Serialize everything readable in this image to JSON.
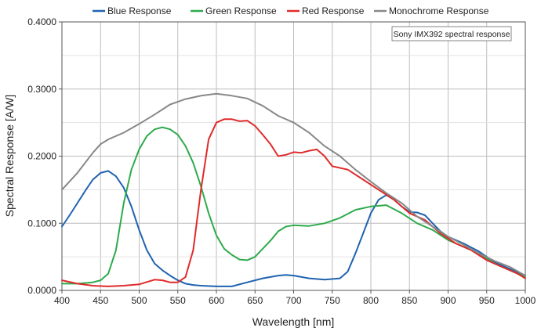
{
  "chart_data": {
    "type": "line",
    "xlabel": "Wavelength [nm]",
    "ylabel": "Spectral Response [A/W]",
    "xlim": [
      400,
      1000
    ],
    "ylim": [
      0,
      0.4
    ],
    "x_ticks": [
      "400",
      "450",
      "500",
      "550",
      "600",
      "650",
      "700",
      "750",
      "800",
      "850",
      "900",
      "950",
      "1000"
    ],
    "y_ticks": [
      "0.0000",
      "0.1000",
      "0.2000",
      "0.3000",
      "0.4000"
    ],
    "grid": true,
    "legend_position": "top",
    "annotation": "Sony IMX392 spectral response",
    "series": [
      {
        "name": "Blue Response",
        "color": "#1f63b0",
        "points": [
          [
            400,
            0.095
          ],
          [
            410,
            0.112
          ],
          [
            420,
            0.13
          ],
          [
            430,
            0.148
          ],
          [
            440,
            0.165
          ],
          [
            450,
            0.175
          ],
          [
            460,
            0.178
          ],
          [
            470,
            0.17
          ],
          [
            480,
            0.153
          ],
          [
            490,
            0.125
          ],
          [
            500,
            0.09
          ],
          [
            510,
            0.06
          ],
          [
            520,
            0.04
          ],
          [
            530,
            0.03
          ],
          [
            540,
            0.022
          ],
          [
            550,
            0.015
          ],
          [
            560,
            0.01
          ],
          [
            570,
            0.008
          ],
          [
            580,
            0.007
          ],
          [
            600,
            0.006
          ],
          [
            620,
            0.006
          ],
          [
            640,
            0.012
          ],
          [
            660,
            0.018
          ],
          [
            680,
            0.022
          ],
          [
            690,
            0.023
          ],
          [
            700,
            0.022
          ],
          [
            720,
            0.018
          ],
          [
            740,
            0.016
          ],
          [
            760,
            0.018
          ],
          [
            770,
            0.028
          ],
          [
            780,
            0.055
          ],
          [
            790,
            0.085
          ],
          [
            800,
            0.115
          ],
          [
            810,
            0.135
          ],
          [
            820,
            0.142
          ],
          [
            830,
            0.135
          ],
          [
            840,
            0.125
          ],
          [
            850,
            0.117
          ],
          [
            860,
            0.116
          ],
          [
            870,
            0.112
          ],
          [
            880,
            0.1
          ],
          [
            890,
            0.088
          ],
          [
            900,
            0.08
          ],
          [
            920,
            0.07
          ],
          [
            940,
            0.058
          ],
          [
            960,
            0.042
          ],
          [
            980,
            0.032
          ],
          [
            1000,
            0.022
          ]
        ]
      },
      {
        "name": "Green Response",
        "color": "#2eaa4c",
        "points": [
          [
            400,
            0.01
          ],
          [
            420,
            0.01
          ],
          [
            440,
            0.012
          ],
          [
            450,
            0.015
          ],
          [
            460,
            0.025
          ],
          [
            470,
            0.06
          ],
          [
            480,
            0.13
          ],
          [
            490,
            0.18
          ],
          [
            500,
            0.21
          ],
          [
            510,
            0.23
          ],
          [
            520,
            0.24
          ],
          [
            530,
            0.243
          ],
          [
            540,
            0.24
          ],
          [
            550,
            0.232
          ],
          [
            560,
            0.215
          ],
          [
            570,
            0.19
          ],
          [
            580,
            0.155
          ],
          [
            590,
            0.115
          ],
          [
            600,
            0.082
          ],
          [
            610,
            0.062
          ],
          [
            620,
            0.053
          ],
          [
            630,
            0.046
          ],
          [
            640,
            0.045
          ],
          [
            650,
            0.05
          ],
          [
            660,
            0.062
          ],
          [
            670,
            0.074
          ],
          [
            680,
            0.088
          ],
          [
            690,
            0.095
          ],
          [
            700,
            0.097
          ],
          [
            720,
            0.096
          ],
          [
            740,
            0.1
          ],
          [
            760,
            0.108
          ],
          [
            780,
            0.12
          ],
          [
            800,
            0.125
          ],
          [
            820,
            0.127
          ],
          [
            840,
            0.115
          ],
          [
            860,
            0.1
          ],
          [
            880,
            0.09
          ],
          [
            900,
            0.075
          ],
          [
            920,
            0.065
          ],
          [
            940,
            0.055
          ],
          [
            960,
            0.04
          ],
          [
            980,
            0.03
          ],
          [
            1000,
            0.02
          ]
        ]
      },
      {
        "name": "Red Response",
        "color": "#e02a2a",
        "points": [
          [
            400,
            0.015
          ],
          [
            420,
            0.01
          ],
          [
            440,
            0.007
          ],
          [
            460,
            0.006
          ],
          [
            480,
            0.007
          ],
          [
            500,
            0.009
          ],
          [
            520,
            0.016
          ],
          [
            530,
            0.015
          ],
          [
            540,
            0.012
          ],
          [
            550,
            0.012
          ],
          [
            560,
            0.02
          ],
          [
            570,
            0.06
          ],
          [
            580,
            0.15
          ],
          [
            590,
            0.225
          ],
          [
            600,
            0.25
          ],
          [
            610,
            0.255
          ],
          [
            620,
            0.255
          ],
          [
            630,
            0.252
          ],
          [
            640,
            0.253
          ],
          [
            650,
            0.245
          ],
          [
            660,
            0.232
          ],
          [
            670,
            0.218
          ],
          [
            680,
            0.2
          ],
          [
            690,
            0.202
          ],
          [
            700,
            0.206
          ],
          [
            710,
            0.205
          ],
          [
            720,
            0.208
          ],
          [
            730,
            0.21
          ],
          [
            740,
            0.2
          ],
          [
            750,
            0.185
          ],
          [
            770,
            0.18
          ],
          [
            790,
            0.165
          ],
          [
            810,
            0.15
          ],
          [
            830,
            0.135
          ],
          [
            850,
            0.115
          ],
          [
            870,
            0.105
          ],
          [
            890,
            0.085
          ],
          [
            910,
            0.07
          ],
          [
            930,
            0.06
          ],
          [
            950,
            0.045
          ],
          [
            970,
            0.035
          ],
          [
            990,
            0.025
          ],
          [
            1000,
            0.018
          ]
        ]
      },
      {
        "name": "Monochrome Response",
        "color": "#888888",
        "points": [
          [
            400,
            0.15
          ],
          [
            420,
            0.175
          ],
          [
            440,
            0.205
          ],
          [
            450,
            0.218
          ],
          [
            460,
            0.225
          ],
          [
            480,
            0.235
          ],
          [
            500,
            0.248
          ],
          [
            520,
            0.262
          ],
          [
            540,
            0.277
          ],
          [
            560,
            0.285
          ],
          [
            580,
            0.29
          ],
          [
            600,
            0.293
          ],
          [
            620,
            0.29
          ],
          [
            640,
            0.286
          ],
          [
            660,
            0.275
          ],
          [
            680,
            0.26
          ],
          [
            700,
            0.25
          ],
          [
            720,
            0.235
          ],
          [
            740,
            0.215
          ],
          [
            760,
            0.2
          ],
          [
            780,
            0.18
          ],
          [
            800,
            0.162
          ],
          [
            820,
            0.145
          ],
          [
            840,
            0.13
          ],
          [
            860,
            0.11
          ],
          [
            880,
            0.095
          ],
          [
            900,
            0.08
          ],
          [
            920,
            0.068
          ],
          [
            940,
            0.055
          ],
          [
            960,
            0.044
          ],
          [
            980,
            0.035
          ],
          [
            1000,
            0.022
          ]
        ]
      }
    ]
  }
}
